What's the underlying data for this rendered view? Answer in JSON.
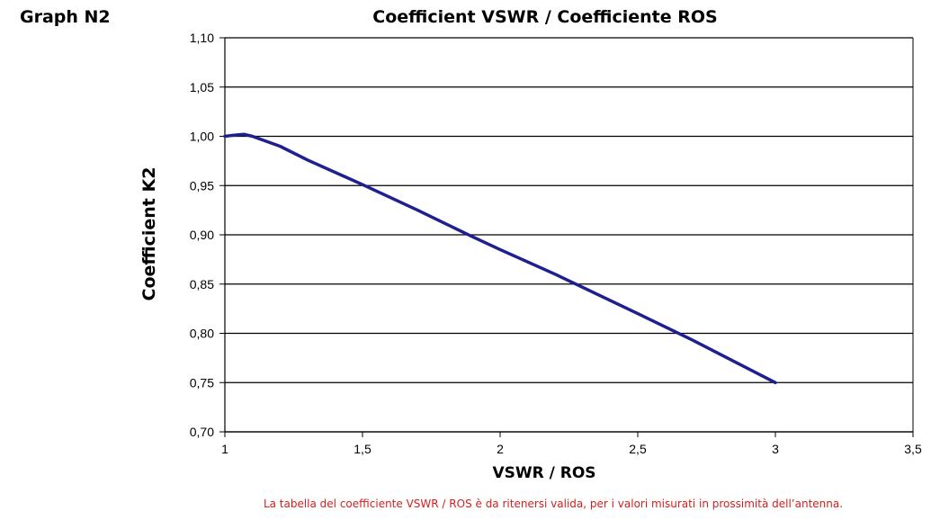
{
  "graph_label": "Graph N2",
  "footnote": "La tabella del coefficiente VSWR / ROS è da ritenersi valida, per i valori misurati in prossimità dell’antenna.",
  "colors": {
    "series_line": "#1f1f8f",
    "gridline": "#000000",
    "footnote_text": "#d0201f"
  },
  "chart_data": {
    "type": "line",
    "title": "Coefficient VSWR / Coefficiente ROS",
    "xlabel": "VSWR / ROS",
    "ylabel": "Coefficient K2",
    "xlim": [
      1,
      3.5
    ],
    "ylim": [
      0.7,
      1.1
    ],
    "x_ticks": [
      "1",
      "1,5",
      "2",
      "2,5",
      "3",
      "3,5"
    ],
    "y_ticks": [
      "1,10",
      "1,05",
      "1,00",
      "0,95",
      "0,90",
      "0,85",
      "0,80",
      "0,75",
      "0,70"
    ],
    "grid": "horizontal",
    "series": [
      {
        "x": [
          1.0,
          1.03,
          1.07,
          1.1,
          1.2,
          1.3,
          1.5,
          1.7,
          1.9,
          2.0,
          2.2,
          2.5,
          2.7,
          3.0
        ],
        "y": [
          1.0,
          1.001,
          1.002,
          1.0,
          0.99,
          0.976,
          0.951,
          0.925,
          0.898,
          0.885,
          0.86,
          0.82,
          0.793,
          0.75
        ]
      }
    ]
  }
}
